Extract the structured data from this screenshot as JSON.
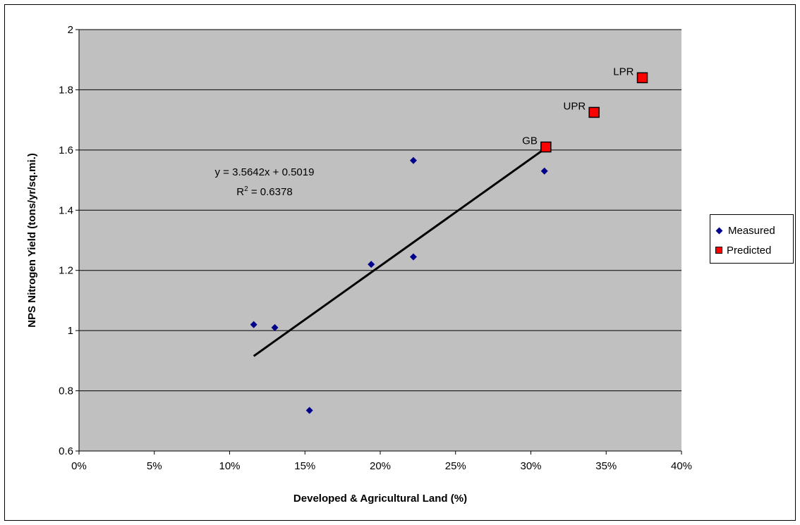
{
  "chart_data": {
    "type": "scatter",
    "title": "",
    "xlabel": "Developed & Agricultural Land (%)",
    "ylabel": "NPS Nitrogen Yield (tons/yr/sq.mi.)",
    "xlim": [
      0,
      0.4
    ],
    "ylim": [
      0.6,
      2.0
    ],
    "x_ticks": [
      "0%",
      "5%",
      "10%",
      "15%",
      "20%",
      "25%",
      "30%",
      "35%",
      "40%"
    ],
    "y_ticks": [
      "0.6",
      "0.8",
      "1",
      "1.2",
      "1.4",
      "1.6",
      "1.8",
      "2"
    ],
    "grid": "horizontal",
    "plot_background": "#c0c0c0",
    "legend_position": "right",
    "series": [
      {
        "name": "Measured",
        "marker": "diamond",
        "color": "#00008B",
        "points": [
          {
            "x": 0.116,
            "y": 1.02
          },
          {
            "x": 0.13,
            "y": 1.01
          },
          {
            "x": 0.153,
            "y": 0.735
          },
          {
            "x": 0.194,
            "y": 1.22
          },
          {
            "x": 0.222,
            "y": 1.245
          },
          {
            "x": 0.222,
            "y": 1.565
          },
          {
            "x": 0.309,
            "y": 1.53
          }
        ]
      },
      {
        "name": "Predicted",
        "marker": "square",
        "color": "#ff0000",
        "points": [
          {
            "x": 0.31,
            "y": 1.61,
            "label": "GB"
          },
          {
            "x": 0.342,
            "y": 1.725,
            "label": "UPR"
          },
          {
            "x": 0.374,
            "y": 1.84,
            "label": "LPR"
          }
        ]
      }
    ],
    "trendline": {
      "slope": 3.5642,
      "intercept": 0.5019,
      "x_range": [
        0.116,
        0.309
      ],
      "equation_text": "y = 3.5642x + 0.5019",
      "r2_prefix": "R",
      "r2_sup": "2",
      "r2_rest": " = 0.6378"
    }
  }
}
